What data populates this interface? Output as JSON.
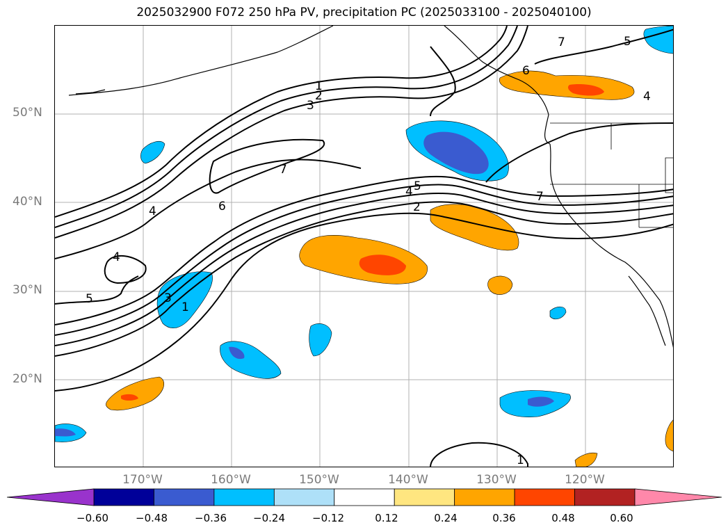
{
  "title": "2025032900 F072 250 hPa PV, precipitation PC (2025033100 - 2025040100)",
  "lat_labels": [
    "50°N",
    "40°N",
    "30°N",
    "20°N"
  ],
  "lon_labels": [
    "170°W",
    "160°W",
    "150°W",
    "140°W",
    "130°W",
    "120°W"
  ],
  "colorbar": {
    "ticks": [
      "−0.60",
      "−0.48",
      "−0.36",
      "−0.24",
      "−0.12",
      "0.12",
      "0.24",
      "0.36",
      "0.48",
      "0.60"
    ],
    "colors": [
      "#9933cc",
      "#000099",
      "#3a5bd0",
      "#00bfff",
      "#aee0f8",
      "#ffffff",
      "#ffe680",
      "#ffa500",
      "#ff4500",
      "#b22222",
      "#ff88aa"
    ]
  },
  "map": {
    "projection": "plate carree",
    "lon_range": [
      -180,
      -110
    ],
    "lat_range": [
      10,
      60
    ],
    "gridlines": true,
    "pv_contour_labels": [
      "1",
      "2",
      "3",
      "7",
      "4",
      "6",
      "5",
      "4",
      "5",
      "4",
      "2",
      "3",
      "1",
      "7",
      "6",
      "7",
      "5",
      "4",
      "1"
    ]
  },
  "colors": {
    "neg_light": "#aee0f8",
    "neg_mid": "#00bfff",
    "neg_dark": "#3a5bd0",
    "pos_light": "#ffe680",
    "pos_mid": "#ffa500",
    "pos_dark": "#ff4500"
  }
}
